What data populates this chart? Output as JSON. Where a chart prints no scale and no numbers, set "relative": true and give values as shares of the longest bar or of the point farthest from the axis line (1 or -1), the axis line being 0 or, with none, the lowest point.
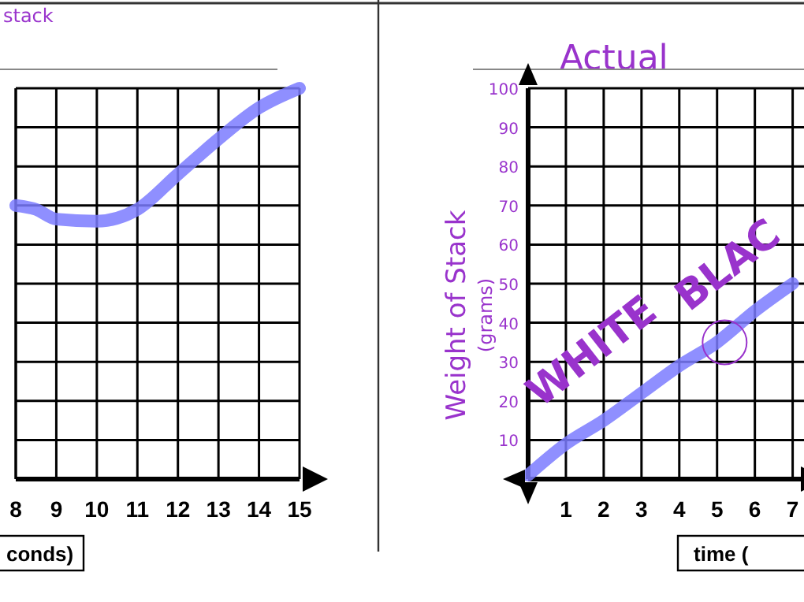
{
  "chart_data": [
    {
      "type": "line",
      "title": "stack",
      "xlabel": "conds)",
      "relative": true,
      "x": [
        8,
        8.5,
        9,
        10,
        11,
        12,
        13,
        14,
        15
      ],
      "series": [
        {
          "color": "#7b7bff",
          "values": [
            0.7,
            0.69,
            0.665,
            0.66,
            0.69,
            0.78,
            0.87,
            0.95,
            1
          ]
        }
      ],
      "xlim": [
        8,
        15
      ],
      "xticks": [
        8,
        9,
        10,
        11,
        12,
        13,
        14,
        15
      ],
      "grid": true,
      "tick_labels": "x"
    },
    {
      "type": "line",
      "title": "Actual",
      "xlabel": "time (",
      "ylabel": "Weight of Stack\n(grams)",
      "annotations": [
        "WHITE",
        "BLAC"
      ],
      "x": [
        0,
        1,
        2,
        3,
        4,
        5,
        6,
        7
      ],
      "series": [
        {
          "color": "#7b7bff",
          "values": [
            1,
            9,
            15,
            22,
            29,
            35,
            43,
            50
          ]
        }
      ],
      "xlim": [
        0,
        7.3
      ],
      "ylim": [
        0,
        100
      ],
      "xticks": [
        1,
        2,
        3,
        4,
        5,
        6,
        7
      ],
      "yticks": [
        10,
        20,
        30,
        40,
        50,
        60,
        70,
        80,
        90,
        100
      ],
      "grid": true
    }
  ]
}
